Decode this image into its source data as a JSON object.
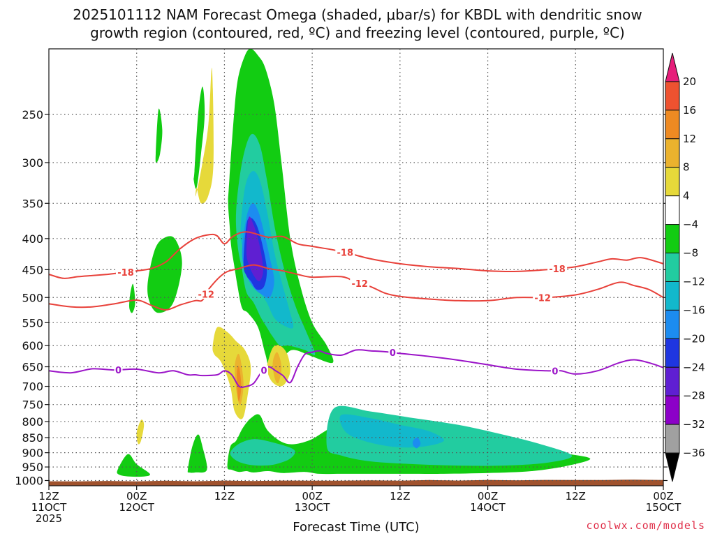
{
  "title_line1": "2025101112 NAM Forecast Omega (shaded, μbar/s) for KBDL with dendritic snow",
  "title_line2": "growth region (contoured, red, ºC) and freezing level (contoured, purple, ºC)",
  "credit": "coolwx.com/models",
  "chart_data": {
    "type": "time-height cross section (filled contours + line contours)",
    "xlabel": "Forecast Time (UTC)",
    "x_ticks": [
      {
        "hours": 0,
        "line1": "12Z",
        "line2": "11OCT",
        "line3": "2025"
      },
      {
        "hours": 12,
        "line1": "00Z",
        "line2": "12OCT",
        "line3": ""
      },
      {
        "hours": 24,
        "line1": "12Z",
        "line2": "",
        "line3": ""
      },
      {
        "hours": 36,
        "line1": "00Z",
        "line2": "13OCT",
        "line3": ""
      },
      {
        "hours": 48,
        "line1": "12Z",
        "line2": "",
        "line3": ""
      },
      {
        "hours": 60,
        "line1": "00Z",
        "line2": "14OCT",
        "line3": ""
      },
      {
        "hours": 72,
        "line1": "12Z",
        "line2": "",
        "line3": ""
      },
      {
        "hours": 84,
        "line1": "00Z",
        "line2": "15OCT",
        "line3": ""
      }
    ],
    "y_axis": "pressure (mb), log scale, decreasing upward",
    "y_ticks": [
      250,
      300,
      350,
      400,
      450,
      500,
      550,
      600,
      650,
      700,
      750,
      800,
      850,
      900,
      950,
      1000
    ],
    "ylim": [
      1020,
      195
    ],
    "grid": true,
    "colorbar": {
      "levels": [
        -36,
        -32,
        -28,
        -24,
        -20,
        -16,
        -12,
        -8,
        -4,
        4,
        8,
        12,
        16,
        20
      ],
      "colors": [
        "#000000",
        "#a0a0a0",
        "#8c00c8",
        "#5f1fd2",
        "#1f36e0",
        "#1c8cf0",
        "#12b8cc",
        "#22cca0",
        "#12cc12",
        "#ffffff",
        "#e6d93a",
        "#ebb22e",
        "#ee8a22",
        "#ee5230",
        "#e61e7a"
      ]
    },
    "omega_regions": [
      {
        "level": "green",
        "color": "#12cc12",
        "t": [
          24.4,
          24.8,
          25.6,
          26.5,
          27.6,
          28.8,
          30.0,
          32.5,
          35.5,
          38.5,
          42.0,
          46.0,
          50.0,
          54.0,
          58.0,
          62.0,
          66.0,
          70.0,
          74.0,
          71.0,
          66.0,
          60.0,
          54.0,
          49.0,
          44.0,
          40.0,
          37.0,
          35.0,
          32.0,
          30.0,
          28.0,
          27.0,
          26.0,
          25.0
        ],
        "p": [
          950,
          880,
          860,
          820,
          790,
          780,
          830,
          870,
          860,
          820,
          790,
          780,
          800,
          820,
          840,
          860,
          880,
          900,
          920,
          945,
          965,
          972,
          975,
          975,
          975,
          975,
          975,
          968,
          972,
          965,
          970,
          965,
          968,
          960
        ]
      },
      {
        "level": "green",
        "color": "#12cc12",
        "t": [
          24.6,
          25.2,
          25.8,
          26.8,
          27.6,
          28.6,
          29.6,
          30.8,
          31.8,
          33.0,
          34.4,
          36.0,
          38.0,
          38.8,
          36.0,
          33.6,
          32.4,
          30.4,
          29.6,
          28.6,
          27.2,
          26.4,
          25.8,
          25.3,
          24.9,
          24.7,
          24.5
        ],
        "p": [
          330,
          260,
          220,
          200,
          195,
          200,
          210,
          240,
          300,
          400,
          480,
          550,
          600,
          640,
          625,
          610,
          620,
          660,
          620,
          560,
          530,
          520,
          480,
          440,
          410,
          380,
          350
        ]
      },
      {
        "level": "teal",
        "color": "#22cca0",
        "t": [
          25.6,
          26.4,
          27.6,
          28.8,
          29.8,
          31.0,
          32.4,
          33.8,
          35.2,
          36.4,
          35.0,
          32.8,
          31.6,
          30.6,
          29.8,
          29.0,
          28.0,
          27.0,
          26.4,
          25.8
        ],
        "p": [
          360,
          300,
          270,
          280,
          320,
          390,
          460,
          520,
          570,
          620,
          610,
          600,
          600,
          580,
          560,
          540,
          510,
          490,
          450,
          410
        ]
      },
      {
        "level": "cyan",
        "color": "#12b8cc",
        "t": [
          26.2,
          26.8,
          27.8,
          28.8,
          29.8,
          30.8,
          31.8,
          32.8,
          33.4,
          32.0,
          30.8,
          29.8,
          28.8,
          27.8,
          27.0,
          26.6
        ],
        "p": [
          390,
          330,
          310,
          320,
          360,
          420,
          470,
          520,
          560,
          555,
          540,
          510,
          490,
          470,
          450,
          420
        ]
      },
      {
        "level": "blue",
        "color": "#1c8cf0",
        "t": [
          26.4,
          27.0,
          27.8,
          28.6,
          29.4,
          30.2,
          30.8,
          30.2,
          29.2,
          28.2,
          27.4,
          26.8
        ],
        "p": [
          420,
          370,
          350,
          360,
          390,
          430,
          470,
          500,
          495,
          485,
          470,
          450
        ]
      },
      {
        "level": "darkblue",
        "color": "#1f36e0",
        "t": [
          26.6,
          27.0,
          27.6,
          28.4,
          29.2,
          29.8,
          29.4,
          28.4,
          27.6,
          27.0
        ],
        "p": [
          440,
          380,
          370,
          380,
          410,
          450,
          480,
          485,
          470,
          460
        ]
      },
      {
        "level": "violet",
        "color": "#5f1fd2",
        "t": [
          27.0,
          27.3,
          28.0,
          28.8,
          29.3,
          28.8,
          28.0,
          27.3
        ],
        "p": [
          420,
          370,
          380,
          410,
          450,
          470,
          460,
          440
        ]
      },
      {
        "level": "teal",
        "color": "#22cca0",
        "t": [
          39.0,
          44.0,
          50.0,
          56.0,
          62.0,
          67.0,
          71.5,
          68.0,
          62.0,
          56.0,
          50.0,
          44.0,
          40.0,
          38.0
        ],
        "p": [
          760,
          770,
          790,
          810,
          840,
          870,
          910,
          935,
          945,
          945,
          940,
          930,
          910,
          880
        ]
      },
      {
        "level": "teal",
        "color": "#22cca0",
        "t": [
          24.8,
          26.0,
          28.0,
          30.5,
          33.5,
          33.0,
          31.0,
          29.0,
          27.0,
          25.5
        ],
        "p": [
          900,
          870,
          855,
          865,
          890,
          920,
          940,
          945,
          940,
          925
        ]
      },
      {
        "level": "cyan",
        "color": "#12b8cc",
        "t": [
          40.0,
          44.0,
          48.0,
          52.0,
          54.0,
          51.0,
          47.0,
          43.0,
          40.5
        ],
        "p": [
          780,
          790,
          810,
          830,
          860,
          880,
          880,
          860,
          830
        ]
      },
      {
        "level": "blue",
        "color": "#1c8cf0",
        "t": [
          49.8,
          50.4,
          50.8,
          50.3,
          49.8
        ],
        "p": [
          860,
          850,
          870,
          885,
          875
        ]
      },
      {
        "level": "green",
        "color": "#12cc12",
        "t": [
          13.5,
          14.4,
          15.6,
          17.2,
          18.2,
          17.0,
          15.0,
          13.8
        ],
        "p": [
          475,
          420,
          400,
          400,
          440,
          510,
          530,
          510
        ]
      },
      {
        "level": "green",
        "color": "#12cc12",
        "t": [
          19.9,
          20.4,
          21.0,
          21.3,
          20.8,
          20.2,
          19.8
        ],
        "p": [
          310,
          250,
          225,
          250,
          290,
          330,
          320
        ]
      },
      {
        "level": "green",
        "color": "#12cc12",
        "t": [
          14.6,
          15.0,
          15.5,
          15.2,
          14.7
        ],
        "p": [
          290,
          245,
          265,
          290,
          300
        ]
      },
      {
        "level": "green",
        "color": "#12cc12",
        "t": [
          9.4,
          10.8,
          12.0,
          13.8,
          13.0,
          11.0,
          9.6
        ],
        "p": [
          960,
          905,
          940,
          975,
          985,
          985,
          978
        ]
      },
      {
        "level": "green",
        "color": "#12cc12",
        "t": [
          19.0,
          19.6,
          20.4,
          21.0,
          21.6,
          20.0,
          19.2
        ],
        "p": [
          960,
          880,
          840,
          880,
          960,
          970,
          970
        ]
      },
      {
        "level": "green",
        "color": "#12cc12",
        "t": [
          11.1,
          11.5,
          11.8,
          11.4,
          11.0
        ],
        "p": [
          495,
          475,
          510,
          530,
          520
        ]
      },
      {
        "level": "yellow",
        "color": "#e6d93a",
        "t": [
          20.1,
          21.0,
          21.8,
          22.3,
          22.5,
          21.8,
          20.8,
          20.2
        ],
        "p": [
          340,
          300,
          260,
          210,
          300,
          340,
          350,
          330
        ]
      },
      {
        "level": "yellow",
        "color": "#e6d93a",
        "t": [
          22.4,
          23.0,
          24.4,
          25.6,
          26.8,
          27.6,
          27.2,
          26.5,
          25.4,
          24.8,
          23.6,
          22.6
        ],
        "p": [
          600,
          560,
          570,
          590,
          610,
          650,
          720,
          790,
          770,
          700,
          640,
          620
        ]
      },
      {
        "level": "yellow",
        "color": "#e6d93a",
        "t": [
          29.8,
          30.6,
          31.6,
          32.6,
          33.0,
          32.4,
          31.6,
          30.6,
          30.0
        ],
        "p": [
          650,
          605,
          600,
          620,
          660,
          690,
          700,
          690,
          670
        ]
      },
      {
        "level": "yellow",
        "color": "#e6d93a",
        "t": [
          12.0,
          12.6,
          13.0,
          12.6,
          12.2
        ],
        "p": [
          835,
          795,
          810,
          860,
          870
        ]
      },
      {
        "level": "orange",
        "color": "#ebb22e",
        "t": [
          25.4,
          26.0,
          26.6,
          26.2,
          25.7
        ],
        "p": [
          650,
          620,
          690,
          750,
          720
        ]
      },
      {
        "level": "orange",
        "color": "#ebb22e",
        "t": [
          30.6,
          31.2,
          31.8,
          31.4,
          30.9
        ],
        "p": [
          640,
          615,
          650,
          690,
          680
        ]
      },
      {
        "level": "red",
        "color": "#ee8a22",
        "t": [
          25.7,
          26.0,
          26.3,
          26.0,
          25.8
        ],
        "p": [
          665,
          650,
          700,
          740,
          720
        ]
      }
    ],
    "contour_minus18": {
      "label": "-18",
      "color": "#e8413a",
      "t": [
        0,
        2,
        4,
        6,
        8,
        10,
        12,
        14,
        16,
        18,
        20,
        22,
        23,
        24,
        25,
        26,
        27,
        28,
        30,
        32,
        34,
        36,
        40,
        44,
        48,
        52,
        56,
        60,
        64,
        68,
        72,
        75,
        77,
        79,
        81,
        84
      ],
      "p": [
        458,
        465,
        462,
        460,
        458,
        455,
        452,
        448,
        437,
        415,
        400,
        394,
        396,
        408,
        398,
        392,
        390,
        392,
        398,
        397,
        408,
        412,
        420,
        432,
        440,
        445,
        448,
        452,
        453,
        450,
        445,
        437,
        432,
        434,
        430,
        440
      ],
      "labels_at": [
        10.5,
        40.5,
        69.5
      ]
    },
    "contour_minus12": {
      "label": "-12",
      "color": "#e8413a",
      "t": [
        0,
        3,
        6,
        9,
        12,
        14,
        16,
        18,
        20,
        21,
        22,
        24,
        26,
        28,
        30,
        32,
        34,
        36,
        40,
        42,
        44,
        46,
        48,
        52,
        56,
        60,
        64,
        68,
        72,
        75,
        78,
        80,
        82,
        84
      ],
      "p": [
        512,
        518,
        518,
        512,
        505,
        515,
        524,
        514,
        506,
        505,
        482,
        456,
        448,
        442,
        448,
        452,
        458,
        463,
        462,
        472,
        480,
        492,
        498,
        503,
        506,
        506,
        500,
        500,
        495,
        485,
        472,
        478,
        485,
        500
      ],
      "labels_at": [
        21.5,
        42.5,
        67.5
      ]
    },
    "contour_zero": {
      "label": "0",
      "color": "#9b14c8",
      "t": [
        0,
        3,
        6,
        9,
        12,
        15,
        17,
        19,
        20,
        21,
        23,
        24,
        25,
        26,
        27,
        28,
        29,
        30,
        31,
        32,
        33,
        34,
        35,
        36,
        37,
        38,
        40,
        42,
        44,
        46,
        48,
        52,
        56,
        60,
        64,
        68,
        70,
        72,
        75,
        78,
        80,
        82,
        84
      ],
      "p": [
        660,
        665,
        655,
        658,
        656,
        665,
        660,
        670,
        670,
        672,
        670,
        660,
        670,
        700,
        700,
        692,
        665,
        650,
        660,
        672,
        690,
        650,
        620,
        615,
        612,
        618,
        622,
        610,
        612,
        614,
        618,
        625,
        634,
        645,
        656,
        660,
        660,
        668,
        660,
        640,
        633,
        640,
        652
      ],
      "labels_at": [
        9.5,
        29.4,
        47.0,
        69.2
      ]
    },
    "ground": {
      "color": "#a0522d"
    }
  }
}
